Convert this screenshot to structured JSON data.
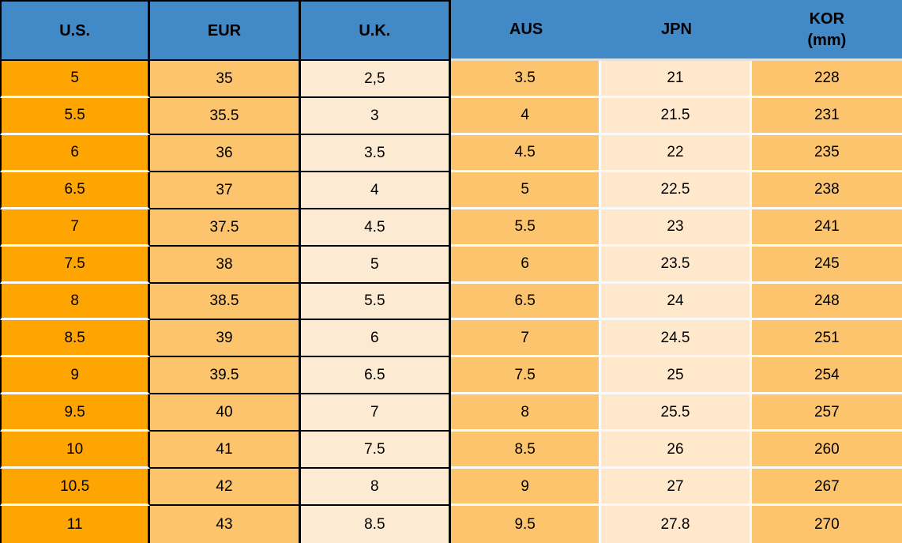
{
  "chart_data": {
    "type": "table",
    "columns": [
      {
        "key": "us",
        "label": "U.S."
      },
      {
        "key": "eur",
        "label": "EUR"
      },
      {
        "key": "uk",
        "label": "U.K."
      },
      {
        "key": "aus",
        "label": "AUS"
      },
      {
        "key": "jpn",
        "label": "JPN"
      },
      {
        "key": "kor",
        "label": "KOR",
        "sublabel": "(mm)"
      }
    ],
    "rows": [
      [
        "5",
        "35",
        "2,5",
        "3.5",
        "21",
        "228"
      ],
      [
        "5.5",
        "35.5",
        "3",
        "4",
        "21.5",
        "231"
      ],
      [
        "6",
        "36",
        "3.5",
        "4.5",
        "22",
        "235"
      ],
      [
        "6.5",
        "37",
        "4",
        "5",
        "22.5",
        "238"
      ],
      [
        "7",
        "37.5",
        "4.5",
        "5.5",
        "23",
        "241"
      ],
      [
        "7.5",
        "38",
        "5",
        "6",
        "23.5",
        "245"
      ],
      [
        "8",
        "38.5",
        "5.5",
        "6.5",
        "24",
        "248"
      ],
      [
        "8.5",
        "39",
        "6",
        "7",
        "24.5",
        "251"
      ],
      [
        "9",
        "39.5",
        "6.5",
        "7.5",
        "25",
        "254"
      ],
      [
        "9.5",
        "40",
        "7",
        "8",
        "25.5",
        "257"
      ],
      [
        "10",
        "41",
        "7.5",
        "8.5",
        "26",
        "260"
      ],
      [
        "10.5",
        "42",
        "8",
        "9",
        "27",
        "267"
      ],
      [
        "11",
        "43",
        "8.5",
        "9.5",
        "27.8",
        "270"
      ]
    ],
    "legend_position": "none",
    "grid": "mixed: black gridlines on U.S./EUR/U.K. columns, white gap separators on AUS/JPN/KOR columns"
  },
  "colors": {
    "header_blue": "#4189C7",
    "us_column_orange": "#FFA502",
    "medium_orange": "#FCC46C",
    "cream": "#FDEAD2",
    "jpn_cream": "#FFE8CB",
    "grid_black": "#000000",
    "separator_white": "#FAFAFA",
    "header_separator_gray": "#E0E0E0",
    "text": "#000000"
  }
}
